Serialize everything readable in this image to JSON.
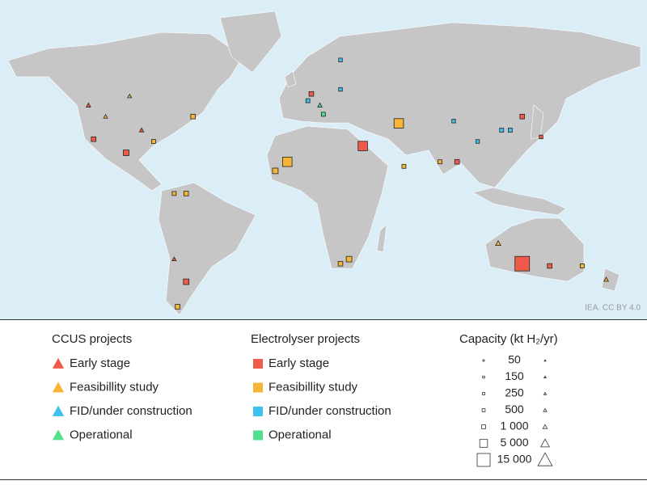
{
  "credit": "IEA. CC BY 4.0",
  "legend": {
    "ccus_title": "CCUS projects",
    "electrolyser_title": "Electrolyser projects",
    "statuses": [
      {
        "label": "Early stage",
        "color": "#f05a4b"
      },
      {
        "label": "Feasibillity study",
        "color": "#f7b538"
      },
      {
        "label": "FID/under construction",
        "color": "#3ec1ec"
      },
      {
        "label": "Operational",
        "color": "#52e08c"
      }
    ],
    "capacity_title": "Capacity (kt H₂/yr)",
    "capacity_levels": [
      50,
      150,
      250,
      500,
      {
        "value": 1000,
        "label": "1 000"
      },
      {
        "value": 5000,
        "label": "5 000"
      },
      {
        "value": 15000,
        "label": "15 000"
      }
    ]
  },
  "projects": [
    {
      "kind": "electrolyser",
      "status": 0,
      "lon": 131,
      "lat": -29,
      "capacity": 15000
    },
    {
      "kind": "electrolyser",
      "status": 1,
      "lon": -6,
      "lat": 16,
      "capacity": 5000
    },
    {
      "kind": "electrolyser",
      "status": 1,
      "lon": -13,
      "lat": 12,
      "capacity": 1000
    },
    {
      "kind": "electrolyser",
      "status": 0,
      "lon": 38,
      "lat": 23,
      "capacity": 5000
    },
    {
      "kind": "electrolyser",
      "status": 1,
      "lon": 59,
      "lat": 33,
      "capacity": 5000
    },
    {
      "kind": "electrolyser",
      "status": 0,
      "lon": -65,
      "lat": -37,
      "capacity": 1000
    },
    {
      "kind": "electrolyser",
      "status": 0,
      "lon": -100,
      "lat": 20,
      "capacity": 1000
    },
    {
      "kind": "electrolyser",
      "status": 0,
      "lon": -119,
      "lat": 26,
      "capacity": 500
    },
    {
      "kind": "electrolyser",
      "status": 1,
      "lon": -61,
      "lat": 36,
      "capacity": 500
    },
    {
      "kind": "electrolyser",
      "status": 0,
      "lon": 8,
      "lat": 46,
      "capacity": 500
    },
    {
      "kind": "electrolyser",
      "status": 1,
      "lon": 30,
      "lat": -27,
      "capacity": 1000
    },
    {
      "kind": "electrolyser",
      "status": 1,
      "lon": 25,
      "lat": -29,
      "capacity": 500
    },
    {
      "kind": "electrolyser",
      "status": 0,
      "lon": 131,
      "lat": 36,
      "capacity": 500
    },
    {
      "kind": "electrolyser",
      "status": 0,
      "lon": 93,
      "lat": 16,
      "capacity": 500
    },
    {
      "kind": "electrolyser",
      "status": 0,
      "lon": 147,
      "lat": -30,
      "capacity": 500
    },
    {
      "kind": "ccus",
      "status": 1,
      "lon": 117,
      "lat": -20,
      "capacity": 500
    },
    {
      "kind": "ccus",
      "status": 3,
      "lon": 13,
      "lat": 41,
      "capacity": 250
    },
    {
      "kind": "electrolyser",
      "status": 2,
      "lon": 6,
      "lat": 43,
      "capacity": 250
    },
    {
      "kind": "electrolyser",
      "status": 3,
      "lon": 15,
      "lat": 37,
      "capacity": 250
    },
    {
      "kind": "electrolyser",
      "status": 2,
      "lon": 119,
      "lat": 30,
      "capacity": 250
    },
    {
      "kind": "electrolyser",
      "status": 2,
      "lon": 124,
      "lat": 30,
      "capacity": 250
    },
    {
      "kind": "ccus",
      "status": 0,
      "lon": -122,
      "lat": 41,
      "capacity": 250
    },
    {
      "kind": "ccus",
      "status": 0,
      "lon": -91,
      "lat": 30,
      "capacity": 250
    },
    {
      "kind": "ccus",
      "status": 1,
      "lon": -112,
      "lat": 36,
      "capacity": 150
    },
    {
      "kind": "electrolyser",
      "status": 1,
      "lon": -65,
      "lat": 2,
      "capacity": 500
    },
    {
      "kind": "electrolyser",
      "status": 1,
      "lon": -72,
      "lat": 2,
      "capacity": 250
    },
    {
      "kind": "ccus",
      "status": 1,
      "lon": 180,
      "lat": -36,
      "capacity": 250
    },
    {
      "kind": "electrolyser",
      "status": 1,
      "lon": 166,
      "lat": -30,
      "capacity": 250
    },
    {
      "kind": "electrolyser",
      "status": 1,
      "lon": 83,
      "lat": 16,
      "capacity": 250
    },
    {
      "kind": "electrolyser",
      "status": 1,
      "lon": 62,
      "lat": 14,
      "capacity": 250
    },
    {
      "kind": "electrolyser",
      "status": 1,
      "lon": -84,
      "lat": 25,
      "capacity": 250
    },
    {
      "kind": "electrolyser",
      "status": 2,
      "lon": 25,
      "lat": 61,
      "capacity": 150
    },
    {
      "kind": "electrolyser",
      "status": 2,
      "lon": 105,
      "lat": 25,
      "capacity": 150
    },
    {
      "kind": "electrolyser",
      "status": 1,
      "lon": -70,
      "lat": -48,
      "capacity": 500
    },
    {
      "kind": "ccus",
      "status": 0,
      "lon": -72,
      "lat": -27,
      "capacity": 150
    },
    {
      "kind": "ccus",
      "status": 1,
      "lon": -98,
      "lat": 45,
      "capacity": 150
    },
    {
      "kind": "electrolyser",
      "status": 2,
      "lon": 91,
      "lat": 34,
      "capacity": 150
    },
    {
      "kind": "electrolyser",
      "status": 0,
      "lon": 142,
      "lat": 27,
      "capacity": 150
    },
    {
      "kind": "electrolyser",
      "status": 2,
      "lon": 25,
      "lat": 48,
      "capacity": 150
    }
  ]
}
